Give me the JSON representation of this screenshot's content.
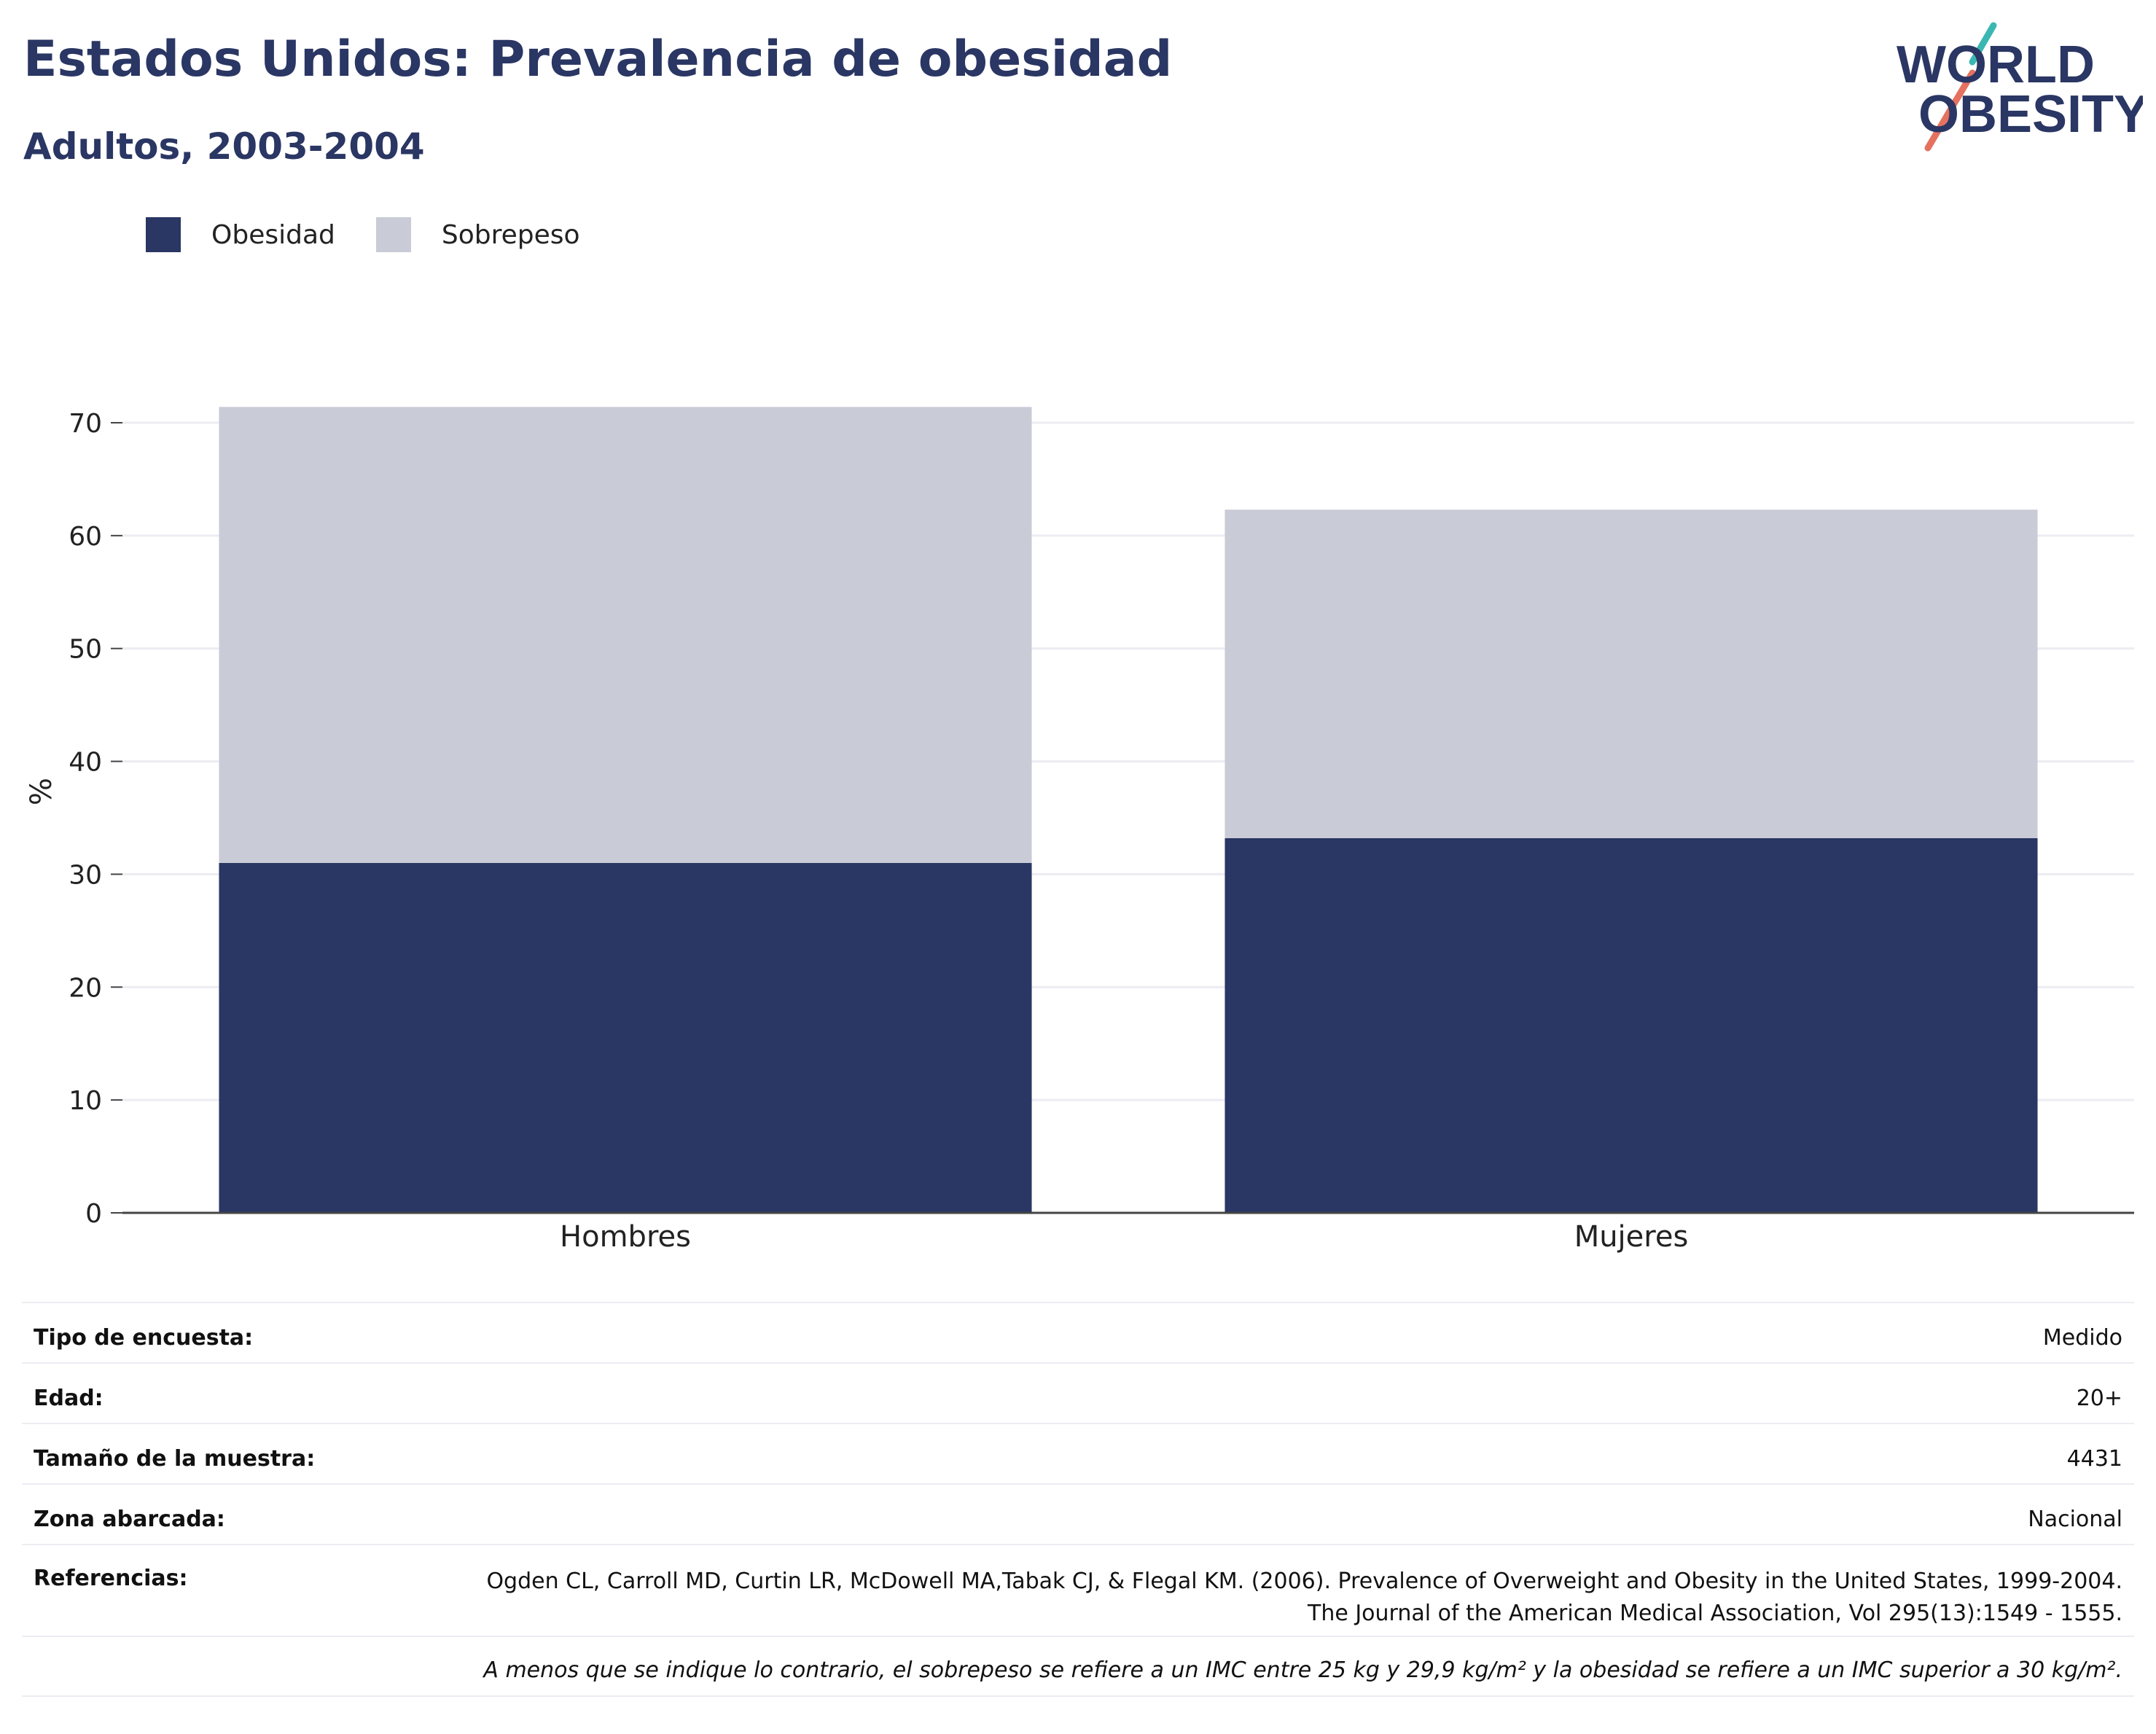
{
  "header": {
    "title": "Estados Unidos: Prevalencia de obesidad",
    "subtitle": "Adultos, 2003-2004"
  },
  "logo": {
    "line1": "WORLD",
    "line2": "OBESITY"
  },
  "colors": {
    "obesidad": "#2a3663",
    "sobrepeso": "#c9ccd7",
    "text": "#2a3663",
    "grid": "#ececf3"
  },
  "chart_data": {
    "type": "bar",
    "stacked": true,
    "categories": [
      "Hombres",
      "Mujeres"
    ],
    "series": [
      {
        "name": "Obesidad",
        "values": [
          31.0,
          33.2
        ]
      },
      {
        "name": "Sobrepeso",
        "values": [
          40.4,
          29.1
        ]
      }
    ],
    "ylabel": "%",
    "ylim": [
      0,
      70
    ],
    "yticks": [
      0,
      10,
      20,
      30,
      40,
      50,
      60,
      70
    ],
    "grid": true,
    "legend": "top-left"
  },
  "info": {
    "tipo": {
      "label": "Tipo de encuesta:",
      "value": "Medido"
    },
    "edad": {
      "label": "Edad:",
      "value": "20+"
    },
    "muestra": {
      "label": "Tamaño de la muestra:",
      "value": "4431"
    },
    "zona": {
      "label": "Zona abarcada:",
      "value": "Nacional"
    },
    "referencias": {
      "label": "Referencias:",
      "value": "Ogden CL, Carroll MD, Curtin LR, McDowell MA,Tabak CJ, & Flegal KM. (2006). Prevalence of Overweight and Obesity in the United States, 1999-2004. The Journal of the American Medical Association, Vol 295(13):1549 - 1555."
    },
    "note": "A menos que se indique lo contrario, el sobrepeso se refiere a un IMC entre 25 kg y 29,9 kg/m² y la obesidad se refiere a un IMC superior a 30 kg/m²."
  }
}
